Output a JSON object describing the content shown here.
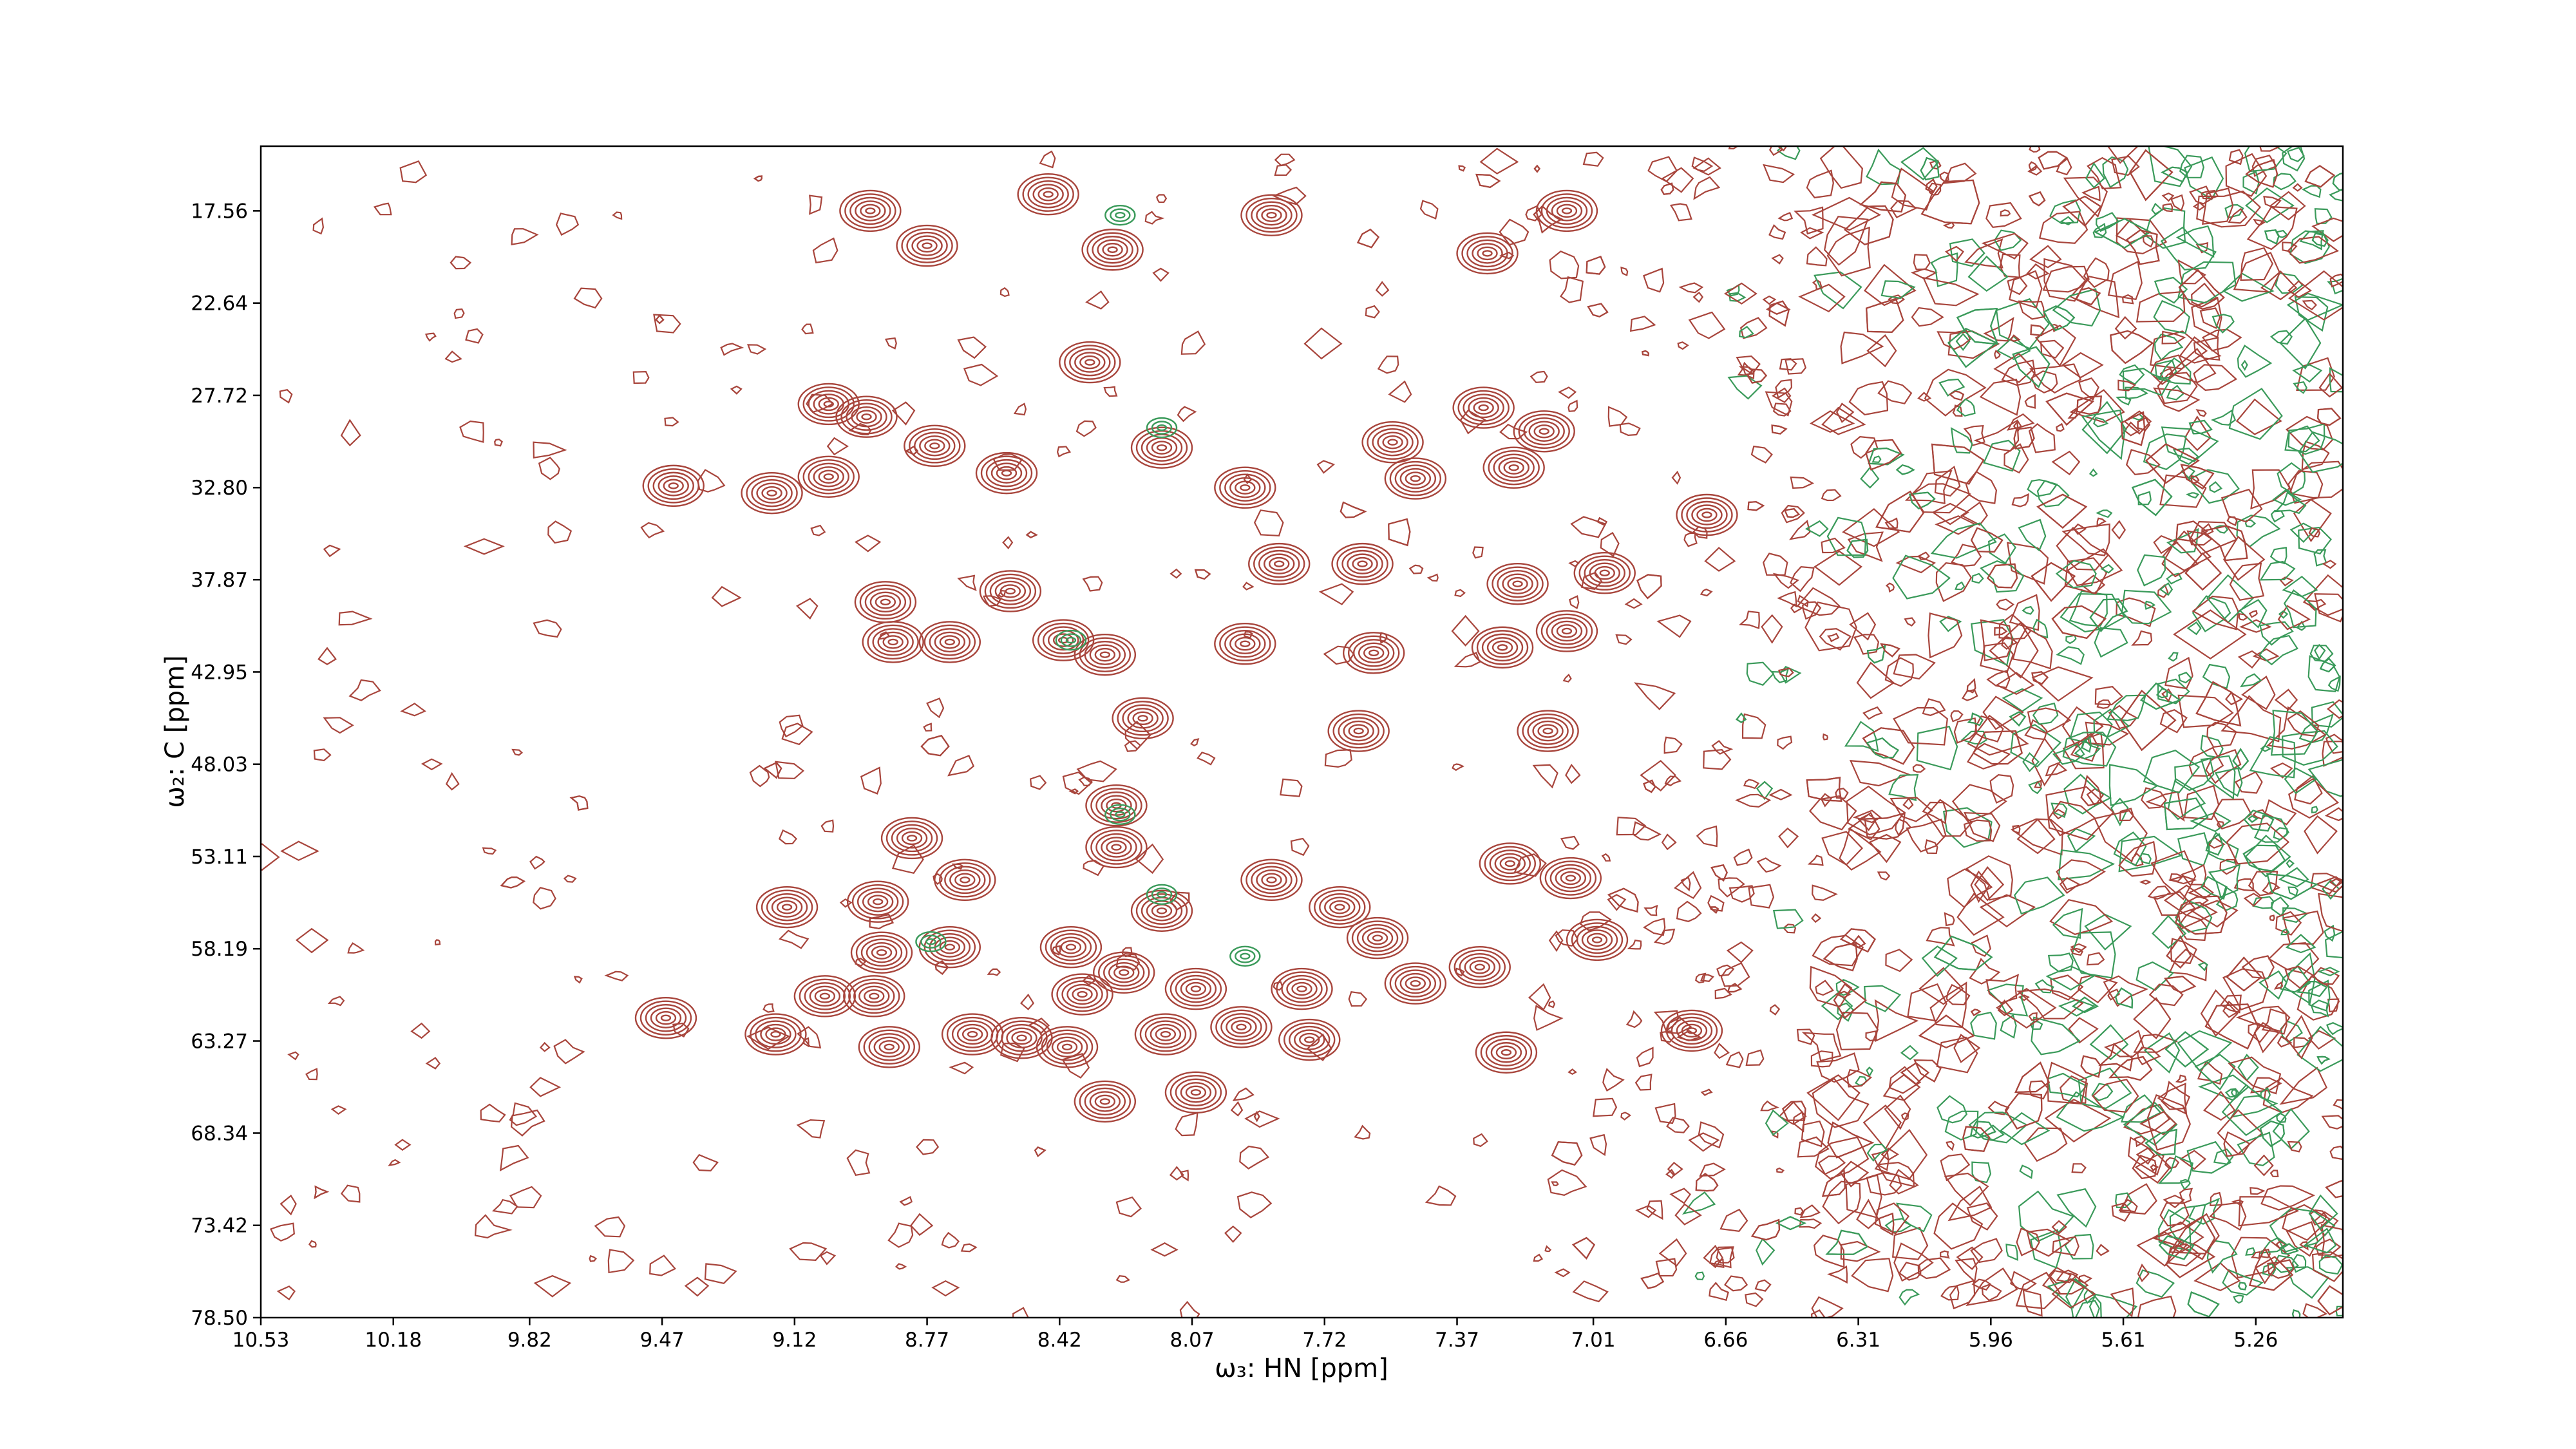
{
  "chart_data": {
    "type": "contour",
    "x_label": "ω₃: HN [ppm]",
    "y_label": "ω₂: C [ppm]",
    "xlim": [
      10.53,
      5.03
    ],
    "ylim": [
      78.5,
      14.0
    ],
    "xticks": [
      10.53,
      10.18,
      9.82,
      9.47,
      9.12,
      8.77,
      8.42,
      8.07,
      7.72,
      7.37,
      7.01,
      6.66,
      6.31,
      5.96,
      5.61,
      5.26
    ],
    "yticks": [
      17.56,
      22.64,
      27.72,
      {
        "value": 32.8,
        "label": "32.80"
      },
      37.87,
      42.95,
      48.03,
      53.11,
      58.19,
      63.27,
      68.34,
      73.42,
      {
        "value": 78.5,
        "label": "78.50"
      }
    ],
    "series": [
      {
        "color": "#a8453c",
        "x": [
          8.92,
          8.77,
          8.45,
          7.86,
          7.29,
          7.08,
          8.34,
          9.03,
          8.93,
          8.75,
          8.56,
          9.44,
          9.18,
          9.03,
          7.3,
          7.14,
          7.54,
          7.93,
          7.48,
          7.22,
          6.71,
          8.15,
          8.28,
          8.88,
          8.71,
          8.86,
          8.41,
          8.3,
          7.93,
          7.62,
          7.59,
          7.84,
          7.21,
          7.25,
          7.08,
          6.98,
          7.13,
          7.63,
          8.2,
          8.55,
          8.81,
          8.67,
          8.9,
          9.14,
          8.89,
          8.71,
          8.39,
          8.15,
          7.86,
          7.68,
          7.58,
          7.23,
          7.07,
          7.0,
          8.27,
          8.27,
          7.31,
          7.48,
          8.36,
          8.25,
          8.06,
          7.78,
          9.04,
          8.91,
          9.17,
          8.87,
          9.46,
          8.65,
          8.52,
          8.4,
          8.14,
          7.94,
          7.76,
          7.24,
          6.75,
          8.3,
          8.06
        ],
        "y": [
          17.56,
          19.48,
          16.65,
          17.8,
          19.9,
          17.56,
          25.9,
          28.2,
          28.9,
          30.5,
          32.0,
          32.7,
          33.1,
          32.2,
          28.4,
          29.7,
          30.3,
          32.8,
          32.3,
          31.7,
          34.3,
          30.6,
          19.7,
          39.1,
          41.3,
          41.3,
          41.2,
          42.0,
          41.4,
          37.0,
          41.9,
          37.0,
          38.1,
          41.6,
          40.7,
          37.5,
          46.2,
          46.2,
          45.5,
          38.5,
          52.1,
          54.4,
          55.6,
          55.9,
          58.4,
          58.1,
          58.1,
          56.1,
          54.4,
          55.9,
          57.6,
          53.5,
          54.3,
          57.7,
          52.6,
          50.3,
          59.2,
          60.1,
          60.7,
          59.5,
          60.4,
          60.4,
          60.8,
          60.8,
          62.9,
          63.6,
          62.0,
          62.9,
          63.1,
          63.6,
          62.9,
          62.5,
          63.2,
          63.9,
          62.7,
          66.6,
          66.1
        ]
      },
      {
        "color": "#3a9a5a",
        "x": [
          8.26,
          8.15,
          8.39,
          8.26,
          8.15,
          7.93,
          8.76
        ],
        "y": [
          17.8,
          29.5,
          41.2,
          50.8,
          55.2,
          58.6,
          57.8
        ]
      }
    ]
  }
}
